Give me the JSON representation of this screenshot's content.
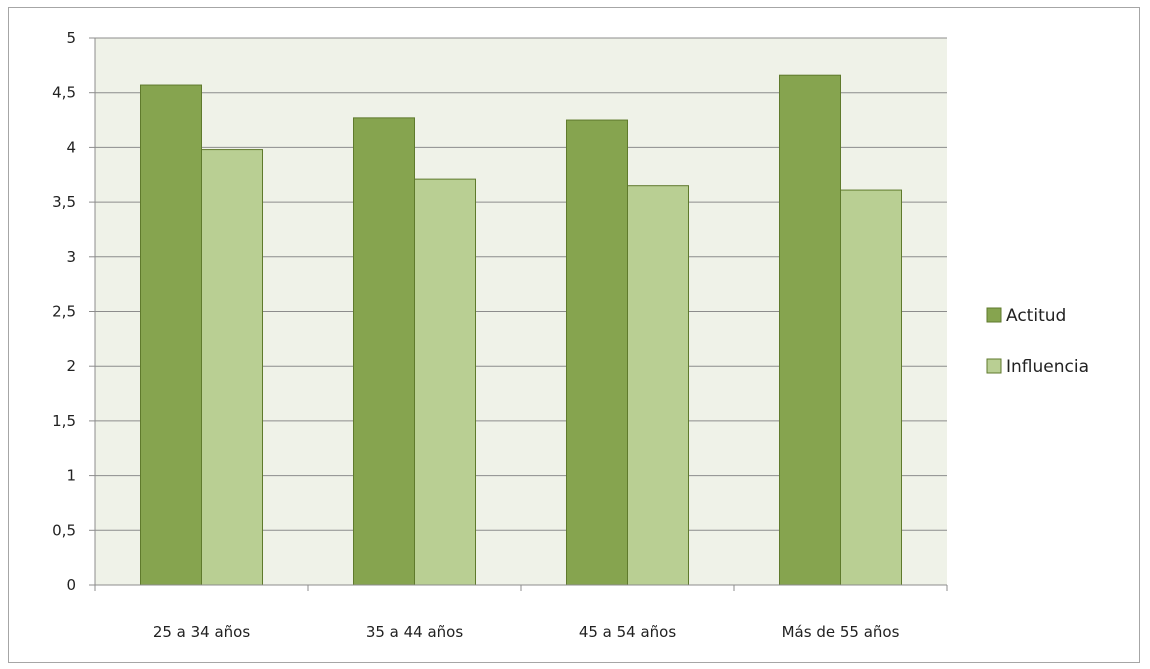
{
  "chart_data": {
    "type": "bar",
    "categories": [
      "25 a 34 años",
      "35 a 44 años",
      "45 a 54 años",
      "Más de 55 años"
    ],
    "series": [
      {
        "name": "Actitud",
        "values": [
          4.57,
          4.27,
          4.25,
          4.66
        ],
        "color": "#86a44f"
      },
      {
        "name": "Influencia",
        "values": [
          3.98,
          3.71,
          3.65,
          3.61
        ],
        "color": "#b9cf93"
      }
    ],
    "ylim": [
      0,
      5
    ],
    "yticks": [
      "0",
      "0,5",
      "1",
      "1,5",
      "2",
      "2,5",
      "3",
      "3,5",
      "4",
      "4,5",
      "5"
    ],
    "grid": true,
    "legend": "right",
    "plot_background": "#eff2e8",
    "title": "",
    "xlabel": "",
    "ylabel": ""
  }
}
